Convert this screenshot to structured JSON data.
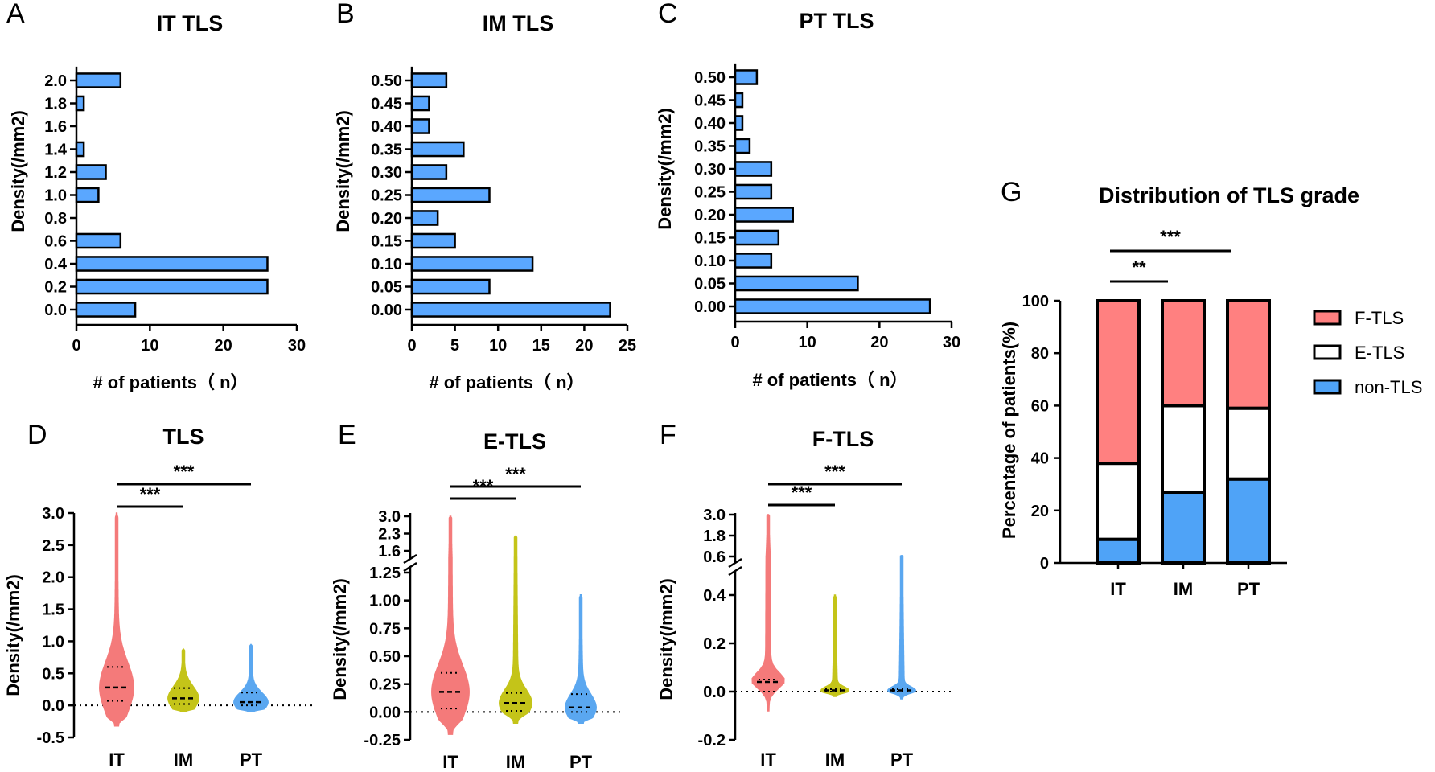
{
  "colors": {
    "bar": "#5aa7ff",
    "f_tls": "#ff8080",
    "e_tls": "#ffffff",
    "non_tls": "#4fa3f7",
    "violin_it": "#f47a7a",
    "violin_im": "#c4c419",
    "violin_pt": "#5aa7f0"
  },
  "chart_data": [
    {
      "id": "A",
      "panel_label": "A",
      "type": "bar",
      "orientation": "horizontal",
      "title": "IT TLS",
      "categories": [
        "0.0",
        "0.2",
        "0.4",
        "0.6",
        "0.8",
        "1.0",
        "1.2",
        "1.4",
        "1.6",
        "1.8",
        "2.0"
      ],
      "values": [
        8,
        26,
        26,
        6,
        0,
        3,
        4,
        1,
        0,
        1,
        6
      ],
      "xlabel": "# of patients（ n）",
      "ylabel": "Density(/mm2)",
      "xlim": [
        0,
        30
      ],
      "xticks": [
        "0",
        "10",
        "20",
        "30"
      ]
    },
    {
      "id": "B",
      "panel_label": "B",
      "type": "bar",
      "orientation": "horizontal",
      "title": "IM TLS",
      "categories": [
        "0.00",
        "0.05",
        "0.10",
        "0.15",
        "0.20",
        "0.25",
        "0.30",
        "0.35",
        "0.40",
        "0.45",
        "0.50"
      ],
      "values": [
        23,
        9,
        14,
        5,
        3,
        9,
        4,
        6,
        2,
        2,
        4
      ],
      "xlabel": "# of patients（ n）",
      "ylabel": "Density(/mm2)",
      "xlim": [
        0,
        25
      ],
      "xticks": [
        "0",
        "5",
        "10",
        "15",
        "20",
        "25"
      ]
    },
    {
      "id": "C",
      "panel_label": "C",
      "type": "bar",
      "orientation": "horizontal",
      "title": "PT TLS",
      "categories": [
        "0.00",
        "0.05",
        "0.10",
        "0.15",
        "0.20",
        "0.25",
        "0.30",
        "0.35",
        "0.40",
        "0.45",
        "0.50"
      ],
      "values": [
        27,
        17,
        5,
        6,
        8,
        5,
        5,
        2,
        1,
        1,
        3
      ],
      "xlabel": "# of patients（ n）",
      "ylabel": "Density(/mm2)",
      "xlim": [
        0,
        30
      ],
      "xticks": [
        "0",
        "10",
        "20",
        "30"
      ]
    },
    {
      "id": "D",
      "panel_label": "D",
      "type": "violin",
      "title": "TLS",
      "categories": [
        "IT",
        "IM",
        "PT"
      ],
      "ylabel": "Density(/mm2)",
      "ylim": [
        -0.5,
        3.0
      ],
      "yticks": [
        "3.0",
        "2.5",
        "2.0",
        "1.5",
        "1.0",
        "0.5",
        "0.0",
        "-0.5"
      ],
      "medians": [
        0.28,
        0.11,
        0.05
      ],
      "quartiles": [
        [
          0.07,
          0.6
        ],
        [
          0.02,
          0.27
        ],
        [
          0.0,
          0.2
        ]
      ],
      "ranges": [
        [
          -0.32,
          3.0
        ],
        [
          -0.1,
          0.88
        ],
        [
          -0.1,
          0.95
        ]
      ],
      "significance": [
        {
          "pair": [
            "IT",
            "IM"
          ],
          "label": "***"
        },
        {
          "pair": [
            "IT",
            "PT"
          ],
          "label": "***"
        }
      ]
    },
    {
      "id": "E",
      "panel_label": "E",
      "type": "violin",
      "title": "E-TLS",
      "categories": [
        "IT",
        "IM",
        "PT"
      ],
      "ylabel": "Density(/mm2)",
      "axis_break": true,
      "yticks_upper": [
        "3.0",
        "2.3",
        "1.6"
      ],
      "yticks_lower": [
        "1.25",
        "1.00",
        "0.75",
        "0.50",
        "0.25",
        "0.00",
        "-0.25"
      ],
      "medians": [
        0.18,
        0.08,
        0.04
      ],
      "quartiles": [
        [
          0.03,
          0.35
        ],
        [
          0.01,
          0.17
        ],
        [
          0.0,
          0.16
        ]
      ],
      "ranges": [
        [
          -0.2,
          3.0
        ],
        [
          -0.1,
          2.2
        ],
        [
          -0.1,
          1.05
        ]
      ],
      "significance": [
        {
          "pair": [
            "IT",
            "IM"
          ],
          "label": "***"
        },
        {
          "pair": [
            "IT",
            "PT"
          ],
          "label": "***"
        }
      ]
    },
    {
      "id": "F",
      "panel_label": "F",
      "type": "violin",
      "title": "F-TLS",
      "categories": [
        "IT",
        "IM",
        "PT"
      ],
      "ylabel": "Density(/mm2)",
      "axis_break": true,
      "yticks_upper": [
        "3.0",
        "1.8",
        "0.6"
      ],
      "yticks_lower": [
        "0.4",
        "0.2",
        "0.0",
        "-0.2"
      ],
      "medians": [
        0.04,
        0.005,
        0.005
      ],
      "quartiles": [
        [
          0.0,
          0.05
        ],
        [
          0.0,
          0.01
        ],
        [
          0.0,
          0.01
        ]
      ],
      "ranges": [
        [
          -0.08,
          3.0
        ],
        [
          -0.02,
          0.4
        ],
        [
          -0.03,
          0.65
        ]
      ],
      "significance": [
        {
          "pair": [
            "IT",
            "IM"
          ],
          "label": "***"
        },
        {
          "pair": [
            "IT",
            "PT"
          ],
          "label": "***"
        }
      ]
    },
    {
      "id": "G",
      "panel_label": "G",
      "type": "stacked_bar",
      "title": "Distribution of TLS grade",
      "categories": [
        "IT",
        "IM",
        "PT"
      ],
      "series": [
        {
          "name": "non-TLS",
          "values": [
            9,
            27,
            32
          ]
        },
        {
          "name": "E-TLS",
          "values": [
            29,
            33,
            27
          ]
        },
        {
          "name": "F-TLS",
          "values": [
            62,
            40,
            41
          ]
        }
      ],
      "legend": [
        "F-TLS",
        "E-TLS",
        "non-TLS"
      ],
      "ylabel": "Percentage of patients(%)",
      "ylim": [
        0,
        100
      ],
      "yticks": [
        "100",
        "80",
        "60",
        "40",
        "20",
        "0"
      ],
      "significance": [
        {
          "pair": [
            "IT",
            "IM"
          ],
          "label": "**"
        },
        {
          "pair": [
            "IT",
            "PT"
          ],
          "label": "***"
        }
      ]
    }
  ]
}
